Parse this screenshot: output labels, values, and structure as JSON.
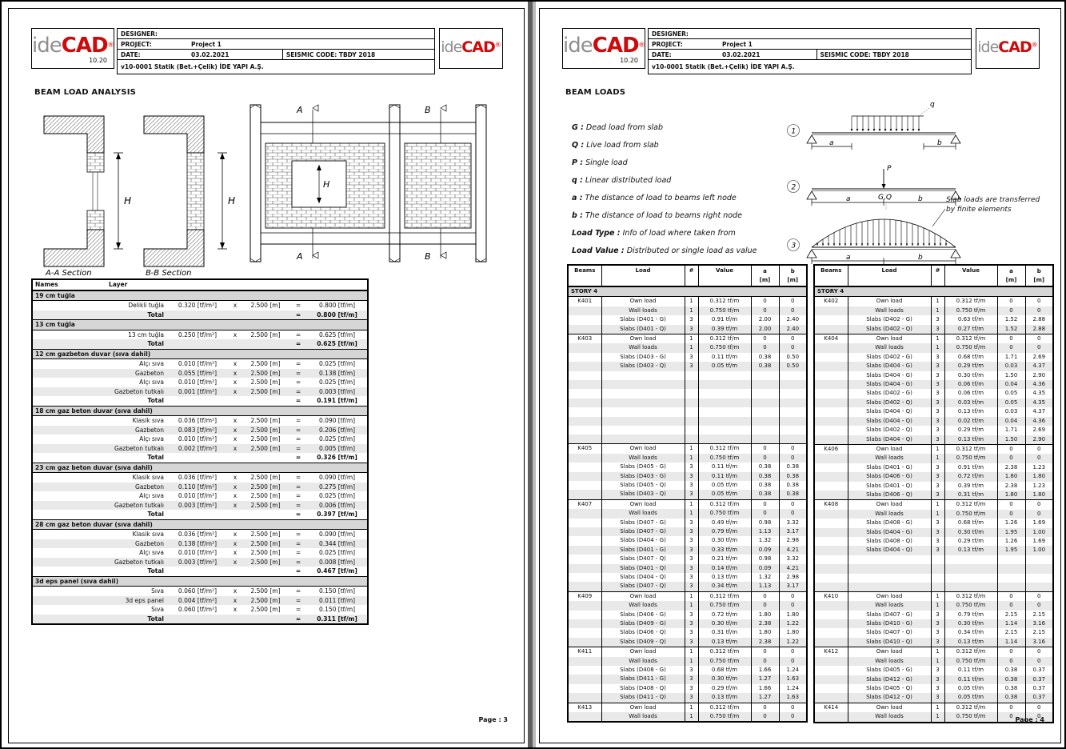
{
  "header": {
    "designer_label": "DESIGNER:",
    "project_label": "PROJECT:",
    "project_value": "Project 1",
    "date_label": "DATE:",
    "date_value": "03.02.2021",
    "seismic": "SEISMIC CODE: TBDY 2018",
    "version_line": "v10-0001 Statik (Bet.+Çelik) İDE YAPI A.Ş.",
    "logo": {
      "ide": "ide",
      "cad": "CAD",
      "reg": "®",
      "version": "10.20"
    },
    "accent_red": "#cf0a0a",
    "logo_gray": "#8f8f8f"
  },
  "page3": {
    "title": "BEAM LOAD ANALYSIS",
    "page_label": "Page : 3",
    "diagram": {
      "aa_caption": "A-A Section",
      "bb_caption": "B-B Section",
      "h_label": "H",
      "a_label": "A",
      "b_label": "B"
    },
    "layers_table": {
      "names_header": "Names",
      "layer_header": "Layer",
      "times": "x",
      "length": "2.500 [m]",
      "eq": "=",
      "total_label": "Total",
      "groups": [
        {
          "name": "19 cm tuğla",
          "rows": [
            [
              "Delikli tuğla",
              "0.320 [tf/m²]",
              "0.800 [tf/m]"
            ]
          ],
          "total": "0.800 [tf/m]"
        },
        {
          "name": "13 cm tuğla",
          "rows": [
            [
              "13 cm tuğla",
              "0.250 [tf/m²]",
              "0.625 [tf/m]"
            ]
          ],
          "total": "0.625 [tf/m]"
        },
        {
          "name": "12 cm gazbeton duvar (sıva dahil)",
          "rows": [
            [
              "Alçı sıva",
              "0.010 [tf/m²]",
              "0.025 [tf/m]"
            ],
            [
              "Gazbeton",
              "0.055 [tf/m²]",
              "0.138 [tf/m]"
            ],
            [
              "Alçı sıva",
              "0.010 [tf/m²]",
              "0.025 [tf/m]"
            ],
            [
              "Gazbeton tutkalı",
              "0.001 [tf/m²]",
              "0.003 [tf/m]"
            ]
          ],
          "total": "0.191 [tf/m]"
        },
        {
          "name": "18 cm gaz beton duvar (sıva dahil)",
          "rows": [
            [
              "Klasik sıva",
              "0.036 [tf/m²]",
              "0.090 [tf/m]"
            ],
            [
              "Gazbeton",
              "0.083 [tf/m²]",
              "0.206 [tf/m]"
            ],
            [
              "Alçı sıva",
              "0.010 [tf/m²]",
              "0.025 [tf/m]"
            ],
            [
              "Gazbeton tutkalı",
              "0.002 [tf/m²]",
              "0.005 [tf/m]"
            ]
          ],
          "total": "0.326 [tf/m]"
        },
        {
          "name": "23 cm gaz beton duvar  (sıva dahil)",
          "rows": [
            [
              "Klasik sıva",
              "0.036 [tf/m²]",
              "0.090 [tf/m]"
            ],
            [
              "Gazbeton",
              "0.110 [tf/m²]",
              "0.275 [tf/m]"
            ],
            [
              "Alçı sıva",
              "0.010 [tf/m²]",
              "0.025 [tf/m]"
            ],
            [
              "Gazbeton tutkalı",
              "0.003 [tf/m²]",
              "0.006 [tf/m]"
            ]
          ],
          "total": "0.397 [tf/m]"
        },
        {
          "name": "28 cm gaz beton duvar  (sıva dahil)",
          "rows": [
            [
              "Klasik sıva",
              "0.036 [tf/m²]",
              "0.090 [tf/m]"
            ],
            [
              "Gazbeton",
              "0.138 [tf/m²]",
              "0.344 [tf/m]"
            ],
            [
              "Alçı sıva",
              "0.010 [tf/m²]",
              "0.025 [tf/m]"
            ],
            [
              "Gazbeton tutkalı",
              "0.003 [tf/m²]",
              "0.008 [tf/m]"
            ]
          ],
          "total": "0.467 [tf/m]"
        },
        {
          "name": "3d eps panel (sıva dahil)",
          "rows": [
            [
              "Sıva",
              "0.060 [tf/m²]",
              "0.150 [tf/m]"
            ],
            [
              "3d eps panel",
              "0.004 [tf/m²]",
              "0.011 [tf/m]"
            ],
            [
              "Sıva",
              "0.060 [tf/m²]",
              "0.150 [tf/m]"
            ]
          ],
          "total": "0.311 [tf/m]"
        }
      ]
    }
  },
  "page4": {
    "title": "BEAM LOADS",
    "page_label": "Page : 4",
    "definitions": [
      {
        "term": "G :",
        "text": "Dead load from slab"
      },
      {
        "term": "Q :",
        "text": "Live load from slab"
      },
      {
        "term": "P :",
        "text": "Single load"
      },
      {
        "term": "q :",
        "text": "Linear distributed load"
      },
      {
        "term": "a :",
        "text": "The distance of load to beams left node"
      },
      {
        "term": "b :",
        "text": "The distance of load to beams right node"
      },
      {
        "term": "Load Type :",
        "text": "Info of load where taken from"
      },
      {
        "term": "Load Value :",
        "text": "Distributed or single load as value"
      }
    ],
    "diagram": {
      "n1": "1",
      "n2": "2",
      "n3": "3",
      "q_label": "q",
      "p_label": "P",
      "gq_label": "G,Q",
      "a_label": "a",
      "b_label": "b",
      "note": "Slab loads are transferred by finite elements"
    },
    "load_tables": {
      "headers": {
        "beams": "Beams",
        "load": "Load",
        "num": "#",
        "value": "Value",
        "a": "a",
        "b": "b",
        "unit": "[m]"
      },
      "story": "STORY 4",
      "left": [
        {
          "beam": "K401",
          "blanks": 0,
          "rows": [
            [
              "Own load",
              "1",
              "0.312 tf/m",
              "0",
              "0"
            ],
            [
              "Wall loads",
              "1",
              "0.750 tf/m",
              "0",
              "0"
            ],
            [
              "Slabs (D401 - G)",
              "3",
              "0.91 tf/m",
              "2.00",
              "2.40"
            ],
            [
              "Slabs (D401 - Q)",
              "3",
              "0.39 tf/m",
              "2.00",
              "2.40"
            ]
          ]
        },
        {
          "beam": "K403",
          "blanks": 8,
          "rows": [
            [
              "Own load",
              "1",
              "0.312 tf/m",
              "0",
              "0"
            ],
            [
              "Wall loads",
              "1",
              "0.750 tf/m",
              "0",
              "0"
            ],
            [
              "Slabs (D403 - G)",
              "3",
              "0.11 tf/m",
              "0.38",
              "0.50"
            ],
            [
              "Slabs (D403 - Q)",
              "3",
              "0.05 tf/m",
              "0.38",
              "0.50"
            ]
          ]
        },
        {
          "beam": "K405",
          "blanks": 0,
          "rows": [
            [
              "Own load",
              "1",
              "0.312 tf/m",
              "0",
              "0"
            ],
            [
              "Wall loads",
              "1",
              "0.750 tf/m",
              "0",
              "0"
            ],
            [
              "Slabs (D405 - G)",
              "3",
              "0.11 tf/m",
              "0.38",
              "0.38"
            ],
            [
              "Slabs (D403 - G)",
              "3",
              "0.11 tf/m",
              "0.38",
              "0.38"
            ],
            [
              "Slabs (D405 - Q)",
              "3",
              "0.05 tf/m",
              "0.38",
              "0.38"
            ],
            [
              "Slabs (D403 - Q)",
              "3",
              "0.05 tf/m",
              "0.38",
              "0.38"
            ]
          ]
        },
        {
          "beam": "K407",
          "blanks": 0,
          "rows": [
            [
              "Own load",
              "1",
              "0.312 tf/m",
              "0",
              "0"
            ],
            [
              "Wall loads",
              "1",
              "0.750 tf/m",
              "0",
              "0"
            ],
            [
              "Slabs (D407 - G)",
              "3",
              "0.49 tf/m",
              "0.98",
              "3.32"
            ],
            [
              "Slabs (D407 - G)",
              "3",
              "0.79 tf/m",
              "1.13",
              "3.17"
            ],
            [
              "Slabs (D404 - G)",
              "3",
              "0.30 tf/m",
              "1.32",
              "2.98"
            ],
            [
              "Slabs (D401 - G)",
              "3",
              "0.33 tf/m",
              "0.09",
              "4.21"
            ],
            [
              "Slabs (D407 - Q)",
              "3",
              "0.21 tf/m",
              "0.98",
              "3.32"
            ],
            [
              "Slabs (D401 - Q)",
              "3",
              "0.14 tf/m",
              "0.09",
              "4.21"
            ],
            [
              "Slabs (D404 - Q)",
              "3",
              "0.13 tf/m",
              "1.32",
              "2.98"
            ],
            [
              "Slabs (D407 - Q)",
              "3",
              "0.34 tf/m",
              "1.13",
              "3.17"
            ]
          ]
        },
        {
          "beam": "K409",
          "blanks": 0,
          "rows": [
            [
              "Own load",
              "1",
              "0.312 tf/m",
              "0",
              "0"
            ],
            [
              "Wall loads",
              "1",
              "0.750 tf/m",
              "0",
              "0"
            ],
            [
              "Slabs (D406 - G)",
              "3",
              "0.72 tf/m",
              "1.80",
              "1.80"
            ],
            [
              "Slabs (D409 - G)",
              "3",
              "0.30 tf/m",
              "2.38",
              "1.22"
            ],
            [
              "Slabs (D406 - Q)",
              "3",
              "0.31 tf/m",
              "1.80",
              "1.80"
            ],
            [
              "Slabs (D409 - Q)",
              "3",
              "0.13 tf/m",
              "2.38",
              "1.22"
            ]
          ]
        },
        {
          "beam": "K411",
          "blanks": 0,
          "rows": [
            [
              "Own load",
              "1",
              "0.312 tf/m",
              "0",
              "0"
            ],
            [
              "Wall loads",
              "1",
              "0.750 tf/m",
              "0",
              "0"
            ],
            [
              "Slabs (D408 - G)",
              "3",
              "0.68 tf/m",
              "1.66",
              "1.24"
            ],
            [
              "Slabs (D411 - G)",
              "3",
              "0.30 tf/m",
              "1.27",
              "1.63"
            ],
            [
              "Slabs (D408 - Q)",
              "3",
              "0.29 tf/m",
              "1.66",
              "1.24"
            ],
            [
              "Slabs (D411 - Q)",
              "3",
              "0.13 tf/m",
              "1.27",
              "1.63"
            ]
          ]
        },
        {
          "beam": "K413",
          "blanks": 0,
          "rows": [
            [
              "Own load",
              "1",
              "0.312 tf/m",
              "0",
              "0"
            ],
            [
              "Wall loads",
              "1",
              "0.750 tf/m",
              "0",
              "0"
            ]
          ]
        }
      ],
      "right": [
        {
          "beam": "K402",
          "blanks": 0,
          "rows": [
            [
              "Own load",
              "1",
              "0.312 tf/m",
              "0",
              "0"
            ],
            [
              "Wall loads",
              "1",
              "0.750 tf/m",
              "0",
              "0"
            ],
            [
              "Slabs (D402 - G)",
              "3",
              "0.63 tf/m",
              "1.52",
              "2.88"
            ],
            [
              "Slabs (D402 - Q)",
              "3",
              "0.27 tf/m",
              "1.52",
              "2.88"
            ]
          ]
        },
        {
          "beam": "K404",
          "blanks": 0,
          "rows": [
            [
              "Own load",
              "1",
              "0.312 tf/m",
              "0",
              "0"
            ],
            [
              "Wall loads",
              "1",
              "0.750 tf/m",
              "0",
              "0"
            ],
            [
              "Slabs (D402 - G)",
              "3",
              "0.68 tf/m",
              "1.71",
              "2.69"
            ],
            [
              "Slabs (D404 - G)",
              "3",
              "0.29 tf/m",
              "0.03",
              "4.37"
            ],
            [
              "Slabs (D404 - G)",
              "3",
              "0.30 tf/m",
              "1.50",
              "2.90"
            ],
            [
              "Slabs (D404 - G)",
              "3",
              "0.06 tf/m",
              "0.04",
              "4.36"
            ],
            [
              "Slabs (D402 - G)",
              "3",
              "0.06 tf/m",
              "0.05",
              "4.35"
            ],
            [
              "Slabs (D402 - Q)",
              "3",
              "0.03 tf/m",
              "0.05",
              "4.35"
            ],
            [
              "Slabs (D404 - Q)",
              "3",
              "0.13 tf/m",
              "0.03",
              "4.37"
            ],
            [
              "Slabs (D404 - Q)",
              "3",
              "0.02 tf/m",
              "0.04",
              "4.36"
            ],
            [
              "Slabs (D402 - Q)",
              "3",
              "0.29 tf/m",
              "1.71",
              "2.69"
            ],
            [
              "Slabs (D404 - Q)",
              "3",
              "0.13 tf/m",
              "1.50",
              "2.90"
            ]
          ]
        },
        {
          "beam": "K406",
          "blanks": 0,
          "rows": [
            [
              "Own load",
              "1",
              "0.312 tf/m",
              "0",
              "0"
            ],
            [
              "Wall loads",
              "1",
              "0.750 tf/m",
              "0",
              "0"
            ],
            [
              "Slabs (D401 - G)",
              "3",
              "0.91 tf/m",
              "2.38",
              "1.23"
            ],
            [
              "Slabs (D406 - G)",
              "3",
              "0.72 tf/m",
              "1.80",
              "1.80"
            ],
            [
              "Slabs (D401 - Q)",
              "3",
              "0.39 tf/m",
              "2.38",
              "1.23"
            ],
            [
              "Slabs (D406 - Q)",
              "3",
              "0.31 tf/m",
              "1.80",
              "1.80"
            ]
          ]
        },
        {
          "beam": "K408",
          "blanks": 4,
          "rows": [
            [
              "Own load",
              "1",
              "0.312 tf/m",
              "0",
              "0"
            ],
            [
              "Wall loads",
              "1",
              "0.750 tf/m",
              "0",
              "0"
            ],
            [
              "Slabs (D408 - G)",
              "3",
              "0.68 tf/m",
              "1.26",
              "1.69"
            ],
            [
              "Slabs (D404 - G)",
              "3",
              "0.30 tf/m",
              "1.95",
              "1.00"
            ],
            [
              "Slabs (D408 - Q)",
              "3",
              "0.29 tf/m",
              "1.26",
              "1.69"
            ],
            [
              "Slabs (D404 - Q)",
              "3",
              "0.13 tf/m",
              "1.95",
              "1.00"
            ]
          ]
        },
        {
          "beam": "K410",
          "blanks": 0,
          "rows": [
            [
              "Own load",
              "1",
              "0.312 tf/m",
              "0",
              "0"
            ],
            [
              "Wall loads",
              "1",
              "0.750 tf/m",
              "0",
              "0"
            ],
            [
              "Slabs (D407 - G)",
              "3",
              "0.79 tf/m",
              "2.15",
              "2.15"
            ],
            [
              "Slabs (D410 - G)",
              "3",
              "0.30 tf/m",
              "1.14",
              "3.16"
            ],
            [
              "Slabs (D407 - Q)",
              "3",
              "0.34 tf/m",
              "2.15",
              "2.15"
            ],
            [
              "Slabs (D410 - Q)",
              "3",
              "0.13 tf/m",
              "1.14",
              "3.16"
            ]
          ]
        },
        {
          "beam": "K412",
          "blanks": 0,
          "rows": [
            [
              "Own load",
              "1",
              "0.312 tf/m",
              "0",
              "0"
            ],
            [
              "Wall loads",
              "1",
              "0.750 tf/m",
              "0",
              "0"
            ],
            [
              "Slabs (D405 - G)",
              "3",
              "0.11 tf/m",
              "0.38",
              "0.37"
            ],
            [
              "Slabs (D412 - G)",
              "3",
              "0.11 tf/m",
              "0.38",
              "0.37"
            ],
            [
              "Slabs (D405 - Q)",
              "3",
              "0.05 tf/m",
              "0.38",
              "0.37"
            ],
            [
              "Slabs (D412 - Q)",
              "3",
              "0.05 tf/m",
              "0.38",
              "0.37"
            ]
          ]
        },
        {
          "beam": "K414",
          "blanks": 0,
          "rows": [
            [
              "Own load",
              "1",
              "0.312 tf/m",
              "0",
              "0"
            ],
            [
              "Wall loads",
              "1",
              "0.750 tf/m",
              "0",
              "0"
            ]
          ]
        }
      ]
    }
  }
}
